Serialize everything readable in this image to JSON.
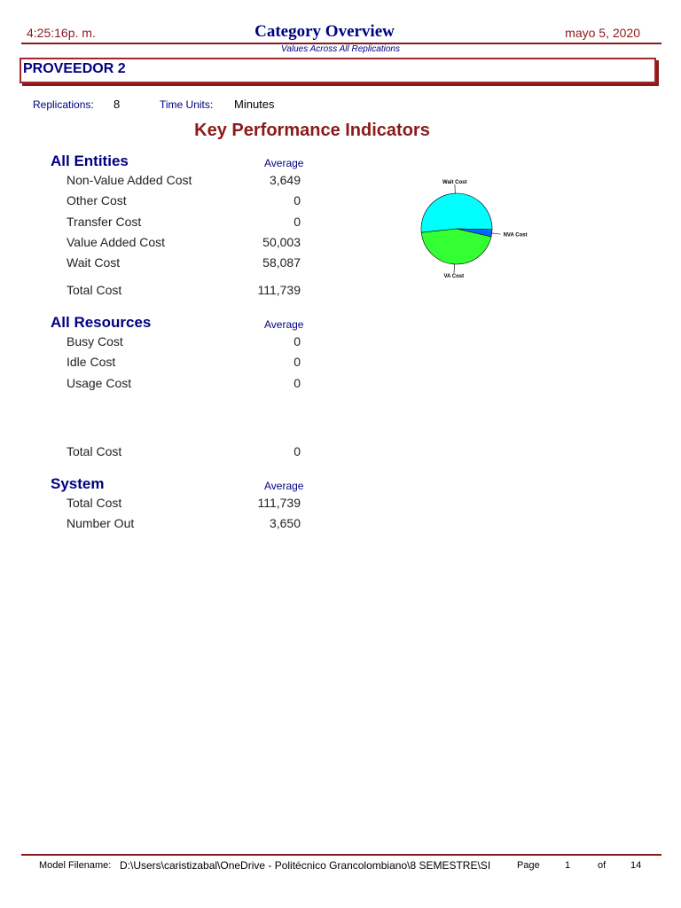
{
  "header": {
    "time": "4:25:16p. m.",
    "title": "Category Overview",
    "subtitle": "Values Across All Replications",
    "date": "mayo 5, 2020"
  },
  "section": "PROVEEDOR 2",
  "info": {
    "replications_label": "Replications:",
    "replications": "8",
    "time_units_label": "Time Units:",
    "time_units": "Minutes"
  },
  "heading": "Key Performance Indicators",
  "groups": [
    {
      "title": "All Entities",
      "column": "Average",
      "rows": [
        [
          "Non-Value Added Cost",
          "3,649"
        ],
        [
          "Other Cost",
          "0"
        ],
        [
          "Transfer Cost",
          "0"
        ],
        [
          "Value Added Cost",
          "50,003"
        ],
        [
          "Wait Cost",
          "58,087"
        ]
      ],
      "total": [
        "Total Cost",
        "111,739"
      ]
    },
    {
      "title": "All Resources",
      "column": "Average",
      "rows": [
        [
          "Busy Cost",
          "0"
        ],
        [
          "Idle Cost",
          "0"
        ],
        [
          "Usage Cost",
          "0"
        ]
      ],
      "total": [
        "Total Cost",
        "0"
      ]
    },
    {
      "title": "System",
      "column": "Average",
      "rows": [
        [
          "Total Cost",
          "111,739"
        ],
        [
          "Number Out",
          "3,650"
        ]
      ]
    }
  ],
  "chart_data": {
    "type": "pie",
    "categories": [
      "Wait Cost",
      "NVA Cost",
      "VA Cost"
    ],
    "values": [
      58087,
      3649,
      50003
    ],
    "colors": [
      "#00ffff",
      "#0066ff",
      "#33ff33"
    ]
  },
  "footer": {
    "filename_label": "Model Filename:",
    "filename": "D:\\Users\\caristizabal\\OneDrive - Politécnico Grancolombiano\\8 SEMESTRE\\SI",
    "page_label": "Page",
    "page": "1",
    "of_label": "of",
    "pages": "14"
  }
}
